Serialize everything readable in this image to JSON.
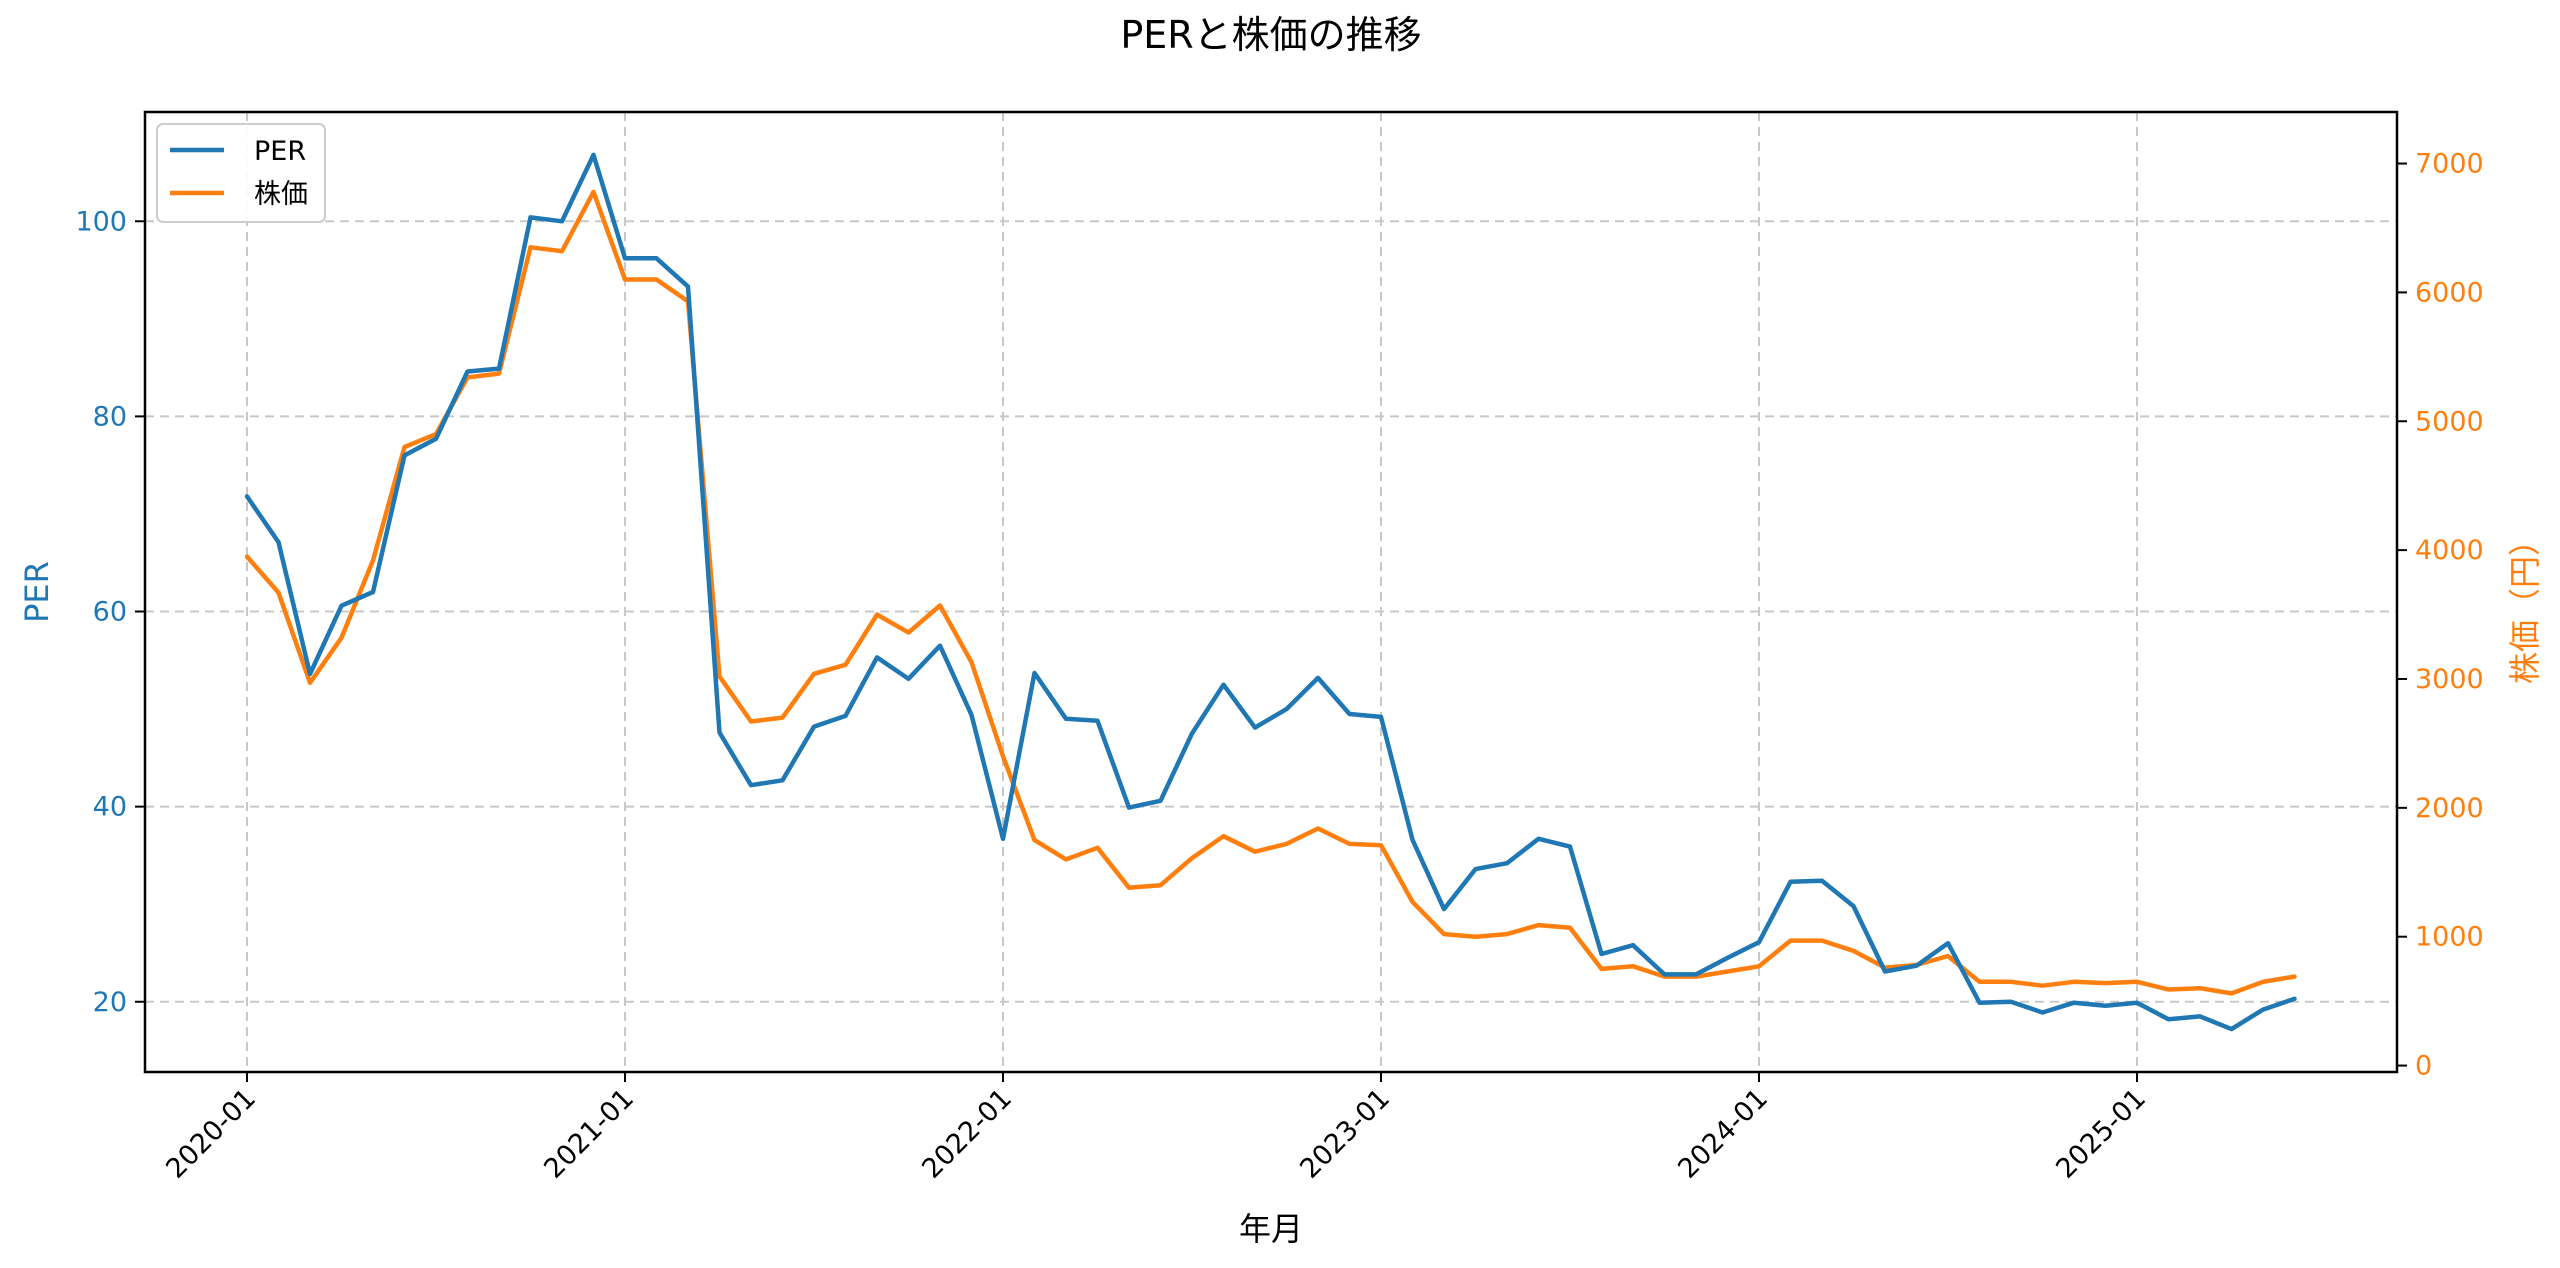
{
  "colors": {
    "per": "#1f77b4",
    "price": "#ff7f0e"
  },
  "chart_data": {
    "type": "line",
    "title": "PERと株価の推移",
    "xlabel": "年月",
    "ylabel_left": "PER",
    "ylabel_right": "株価（円）",
    "x_ticks": [
      "2020-01",
      "2021-01",
      "2022-01",
      "2023-01",
      "2024-01",
      "2025-01"
    ],
    "y_left_ticks": [
      20,
      40,
      60,
      80,
      100
    ],
    "y_right_ticks": [
      0,
      1000,
      2000,
      3000,
      4000,
      5000,
      6000,
      7000
    ],
    "y_left_lim": [
      12.8,
      111.2
    ],
    "y_right_lim": [
      -50,
      7400
    ],
    "x_start": "2020-01",
    "legend": {
      "location": "top-left",
      "entries": [
        "PER",
        "株価"
      ]
    },
    "series": [
      {
        "name": "PER",
        "axis": "left",
        "values": [
          71.8,
          67.1,
          53.6,
          60.6,
          62.0,
          76.0,
          77.7,
          84.6,
          84.9,
          100.4,
          100.0,
          106.8,
          96.2,
          96.2,
          93.3,
          47.6,
          42.2,
          42.7,
          48.2,
          49.3,
          55.3,
          53.1,
          56.5,
          49.4,
          36.7,
          53.7,
          49.0,
          48.8,
          39.9,
          40.6,
          47.5,
          52.5,
          48.1,
          50.0,
          53.2,
          49.5,
          49.2,
          36.6,
          29.5,
          33.6,
          34.2,
          36.7,
          35.9,
          24.9,
          25.8,
          22.8,
          22.8,
          24.5,
          26.1,
          32.3,
          32.4,
          29.8,
          23.1,
          23.7,
          26.0,
          19.9,
          20.0,
          18.9,
          19.9,
          19.6,
          19.9,
          18.2,
          18.5,
          17.2,
          19.2,
          20.3
        ]
      },
      {
        "name": "株価",
        "axis": "right",
        "values": [
          3950,
          3670,
          2970,
          3320,
          3920,
          4800,
          4900,
          5340,
          5370,
          6350,
          6320,
          6780,
          6100,
          6100,
          5930,
          3020,
          2670,
          2700,
          3040,
          3110,
          3500,
          3360,
          3570,
          3130,
          2400,
          1750,
          1600,
          1690,
          1380,
          1400,
          1610,
          1780,
          1660,
          1720,
          1840,
          1720,
          1710,
          1270,
          1020,
          1000,
          1020,
          1090,
          1070,
          750,
          770,
          690,
          690,
          730,
          770,
          970,
          970,
          890,
          760,
          780,
          850,
          650,
          650,
          620,
          650,
          640,
          650,
          590,
          600,
          560,
          650,
          690
        ]
      }
    ]
  }
}
